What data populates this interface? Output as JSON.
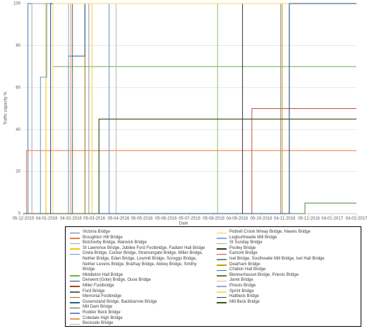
{
  "chart_data": {
    "type": "line",
    "step": true,
    "y_label": "Traffic capacity %",
    "x_label": "Date",
    "xlim": [
      "2015-12-05",
      "2017-02-04"
    ],
    "xticks": [
      {
        "value": "2015-12-05",
        "label": "05-12-2015"
      },
      {
        "value": "2016-01-04",
        "label": "04-01-2016"
      },
      {
        "value": "2016-02-04",
        "label": "04-02-2016"
      },
      {
        "value": "2016-03-05",
        "label": "05-03-2016"
      },
      {
        "value": "2016-04-05",
        "label": "05-04-2016"
      },
      {
        "value": "2016-05-05",
        "label": "05-05-2016"
      },
      {
        "value": "2016-06-05",
        "label": "05-06-2016"
      },
      {
        "value": "2016-07-05",
        "label": "05-07-2016"
      },
      {
        "value": "2016-08-05",
        "label": "05-08-2016"
      },
      {
        "value": "2016-09-04",
        "label": "04-09-2016"
      },
      {
        "value": "2016-10-05",
        "label": "05-10-2016"
      },
      {
        "value": "2016-11-04",
        "label": "04-11-2016"
      },
      {
        "value": "2016-12-05",
        "label": "05-12-2016"
      },
      {
        "value": "2017-01-04",
        "label": "04-01-2017"
      },
      {
        "value": "2017-02-04",
        "label": "04-02-2017"
      }
    ],
    "ylim": [
      0,
      100
    ],
    "yticks": [
      0,
      20,
      40,
      60,
      80,
      100
    ],
    "grid": true,
    "series": [
      {
        "name": "Victoria Bridge",
        "color": "#4472c4",
        "x": [
          "2015-12-05",
          "2015-12-11",
          "2017-02-04"
        ],
        "values": [
          0,
          100,
          100
        ]
      },
      {
        "name": "Broughton Hill Bridge",
        "color": "#ed7d31",
        "x": [
          "2015-12-05",
          "2015-12-09",
          "2017-02-04"
        ],
        "values": [
          0,
          30,
          30
        ]
      },
      {
        "name": "Botcherby Bridge, Warwick Bridge",
        "color": "#a5a5a5",
        "x": [
          "2015-12-05",
          "2015-12-16",
          "2017-02-04"
        ],
        "values": [
          0,
          100,
          100
        ]
      },
      {
        "name": "St Lawrence Bridge, Jubilee Ford Footbridge, Fadlam Hall Bridge",
        "color": "#ffc000",
        "x": [
          "2015-12-05",
          "2016-01-03",
          "2017-02-04"
        ],
        "values": [
          0,
          100,
          100
        ]
      },
      {
        "name": "Greta Bridge, Cocker Bridge, Stramongate Bridge, Miller Bridge, Nether Bridge, Eden Bridge, Lowmill Bridge, Scroggs Bridge, Nether Levens Bridge, Brathay Bridge, Abbey Bridge, Smithy Bridge",
        "color": "#5b9bd5",
        "x": [
          "2015-12-05",
          "2015-12-27",
          "2016-01-04",
          "2017-02-04"
        ],
        "values": [
          0,
          65,
          100,
          100
        ]
      },
      {
        "name": "Middleton Hall Bridge",
        "color": "#70ad47",
        "x": [
          "2015-12-05",
          "2016-01-12",
          "2017-02-04"
        ],
        "values": [
          0,
          70,
          70
        ]
      },
      {
        "name": "Derwent (Gote) Bridge, Ouse Bridge",
        "color": "#264478",
        "x": [
          "2015-12-05",
          "2016-01-09",
          "2017-02-04"
        ],
        "values": [
          0,
          100,
          100
        ]
      },
      {
        "name": "Miller Footbridge",
        "color": "#9e480e",
        "x": [
          "2015-12-05",
          "2016-02-04",
          "2017-02-04"
        ],
        "values": [
          0,
          100,
          100
        ]
      },
      {
        "name": "Ford Bridge",
        "color": "#636363",
        "x": [
          "2015-12-05",
          "2016-02-06",
          "2017-02-04"
        ],
        "values": [
          0,
          100,
          100
        ]
      },
      {
        "name": "Memorial Footbridge",
        "color": "#997300",
        "x": [
          "2015-12-05",
          "2016-02-22",
          "2017-02-04"
        ],
        "values": [
          0,
          100,
          100
        ]
      },
      {
        "name": "Ousenstand Bridge, Backbarrow Bridge",
        "color": "#255e91",
        "x": [
          "2015-12-05",
          "2016-02-01",
          "2016-02-22",
          "2017-02-04"
        ],
        "values": [
          0,
          75,
          100,
          100
        ]
      },
      {
        "name": "Mill Dam Bridge",
        "color": "#43682b",
        "x": [
          "2015-12-05",
          "2016-03-11",
          "2017-02-04"
        ],
        "values": [
          0,
          45,
          45
        ]
      },
      {
        "name": "Rodder Beck Bridge",
        "color": "#698ed0",
        "x": [
          "2015-12-05",
          "2016-03-24",
          "2017-02-04"
        ],
        "values": [
          0,
          100,
          100
        ]
      },
      {
        "name": "Coledale High Bridge",
        "color": "#f1975a",
        "x": [
          "2015-12-05",
          "2016-02-27",
          "2017-02-04"
        ],
        "values": [
          0,
          100,
          100
        ]
      },
      {
        "name": "Beckside Bridge",
        "color": "#b7b7b7",
        "x": [
          "2015-12-05",
          "2016-04-02",
          "2017-02-04"
        ],
        "values": [
          0,
          100,
          100
        ]
      },
      {
        "name": "Pottrell Crook Wreay Bridge, Hawes Bridge",
        "color": "#ffcd33",
        "x": [
          "2015-12-05",
          "2016-03-02",
          "2017-02-04"
        ],
        "values": [
          0,
          100,
          100
        ]
      },
      {
        "name": "Legburthwaite Mill Bridge",
        "color": "#7cafdd",
        "x": [
          "2015-12-05",
          "2016-02-01",
          "2017-02-04"
        ],
        "values": [
          0,
          100,
          100
        ]
      },
      {
        "name": "St Sunday Bridge",
        "color": "#8cc168",
        "x": [
          "2015-12-05",
          "2016-08-10",
          "2017-02-04"
        ],
        "values": [
          0,
          100,
          100
        ]
      },
      {
        "name": "Pooley Bridge",
        "color": "#333333",
        "x": [
          "2015-12-05",
          "2016-09-11",
          "2017-02-04"
        ],
        "values": [
          0,
          100,
          100
        ]
      },
      {
        "name": "Eamont Bridge",
        "color": "#c0504d",
        "x": [
          "2015-12-05",
          "2016-09-23",
          "2017-02-04"
        ],
        "values": [
          0,
          50,
          50
        ]
      },
      {
        "name": "Isel Bridge, Southwaite Mill Bridge, Isel Hall Bridge",
        "color": "#848484",
        "x": [
          "2015-12-05",
          "2016-10-30",
          "2017-02-04"
        ],
        "values": [
          0,
          100,
          100
        ]
      },
      {
        "name": "Dearham Bridge",
        "color": "#cc9a00",
        "x": [
          "2015-12-05",
          "2016-11-01",
          "2017-02-04"
        ],
        "values": [
          0,
          100,
          100
        ]
      },
      {
        "name": "Challon Hall Bridge",
        "color": "#2e75b6",
        "x": [
          "2015-12-05",
          "2016-11-10",
          "2017-02-04"
        ],
        "values": [
          0,
          100,
          100
        ]
      },
      {
        "name": "Blennerhasset Bridge, Priests Bridge",
        "color": "#548235",
        "x": [
          "2015-12-05",
          "2016-11-30",
          "2017-02-04"
        ],
        "values": [
          0,
          5,
          5
        ]
      },
      {
        "name": "Janet Bridge",
        "color": "#f4b183",
        "x": [
          "2015-12-05",
          "2016-02-04",
          "2017-02-04"
        ],
        "values": [
          0,
          100,
          100
        ]
      },
      {
        "name": "Priests Bridge",
        "color": "#8faadc",
        "x": [
          "2015-12-05",
          "2016-02-27",
          "2017-02-04"
        ],
        "values": [
          0,
          100,
          100
        ]
      },
      {
        "name": "Sprint Bridge",
        "color": "#ffd966",
        "x": [
          "2015-12-05",
          "2016-01-12",
          "2017-02-04"
        ],
        "values": [
          0,
          100,
          100
        ]
      },
      {
        "name": "Hallbeck Bridge",
        "color": "#1f4e79",
        "x": [
          "2015-12-05",
          "2016-11-10",
          "2017-02-04"
        ],
        "values": [
          0,
          100,
          100
        ]
      },
      {
        "name": "Mill Beck Bridge",
        "color": "#385723",
        "x": [
          "2015-12-05",
          "2016-03-11",
          "2017-02-04"
        ],
        "values": [
          0,
          45,
          45
        ]
      }
    ]
  }
}
